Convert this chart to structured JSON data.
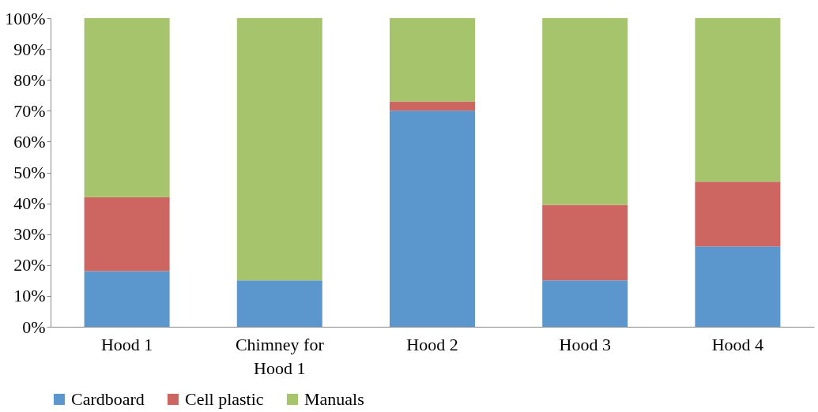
{
  "chart_data": {
    "type": "bar",
    "stacked": true,
    "categories": [
      "Hood 1",
      "Chimney for Hood 1",
      "Hood 2",
      "Hood 3",
      "Hood 4"
    ],
    "series": [
      {
        "name": "Cardboard",
        "color": "#5b96cc",
        "values": [
          18,
          15,
          70,
          15,
          26
        ]
      },
      {
        "name": "Cell plastic",
        "color": "#cd6560",
        "values": [
          24,
          0,
          3,
          24.5,
          21
        ]
      },
      {
        "name": "Manuals",
        "color": "#a6c46b",
        "values": [
          58,
          85,
          27,
          60.5,
          53
        ]
      }
    ],
    "ylim": [
      0,
      100
    ],
    "yticks": [
      {
        "value": 0,
        "label": "0%"
      },
      {
        "value": 10,
        "label": "10%"
      },
      {
        "value": 20,
        "label": "20%"
      },
      {
        "value": 30,
        "label": "30%"
      },
      {
        "value": 40,
        "label": "40%"
      },
      {
        "value": 50,
        "label": "50%"
      },
      {
        "value": 60,
        "label": "60%"
      },
      {
        "value": 70,
        "label": "70%"
      },
      {
        "value": 80,
        "label": "80%"
      },
      {
        "value": 90,
        "label": "90%"
      },
      {
        "value": 100,
        "label": "100%"
      }
    ],
    "grid": false,
    "legend": "bottom"
  }
}
